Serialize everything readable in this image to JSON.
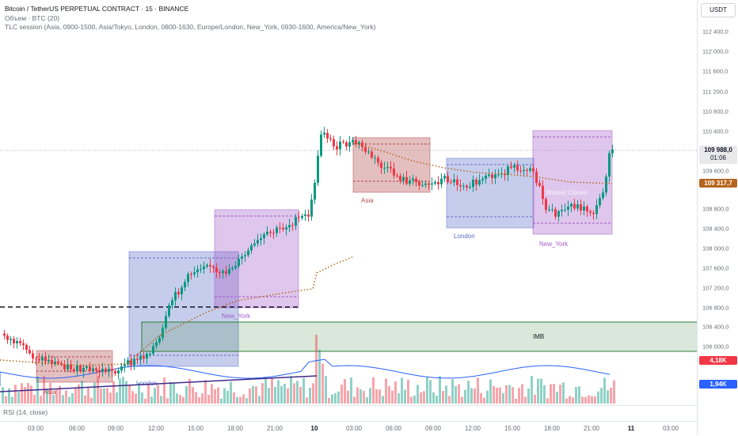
{
  "legend": {
    "title": "Bitcoin / TetherUS PERPETUAL CONTRACT · 15 · BINANCE",
    "volume": "Объем · BTC (20)",
    "tlc": "TLC session (Asia, 0900-1500, Asia/Tokyo, London, 0800-1630, Europe/London, New_York, 0930-1600, America/New_York)"
  },
  "currency": "USDT",
  "price_axis": [
    "112 400,0",
    "112 000,0",
    "111 600,0",
    "111 200,0",
    "110 800,0",
    "110 400,0",
    "109 600,0",
    "108 800,0",
    "108 400,0",
    "108 000,0",
    "107 600,0",
    "107 200,0",
    "106 800,0",
    "106 400,0",
    "106 000,0"
  ],
  "last_price": {
    "price": "109 988,0",
    "countdown": "01:06"
  },
  "vwap_price": "109 317,7",
  "volume_labels": {
    "current": "4,18K",
    "ma": "1,94K"
  },
  "time_axis": [
    {
      "label": "03:00",
      "bold": false
    },
    {
      "label": "06:00",
      "bold": false
    },
    {
      "label": "09:00",
      "bold": false
    },
    {
      "label": "12:00",
      "bold": false
    },
    {
      "label": "15:00",
      "bold": false
    },
    {
      "label": "18:00",
      "bold": false
    },
    {
      "label": "21:00",
      "bold": false
    },
    {
      "label": "10",
      "bold": true
    },
    {
      "label": "03:00",
      "bold": false
    },
    {
      "label": "06:00",
      "bold": false
    },
    {
      "label": "09:00",
      "bold": false
    },
    {
      "label": "12:00",
      "bold": false
    },
    {
      "label": "15:00",
      "bold": false
    },
    {
      "label": "18:00",
      "bold": false
    },
    {
      "label": "21:00",
      "bold": false
    },
    {
      "label": "11",
      "bold": true
    },
    {
      "label": "03:00",
      "bold": false
    }
  ],
  "rsi_label": "RSI (14, close)",
  "sessions": {
    "asia": "Asia",
    "london": "London",
    "new_york": "New_York"
  },
  "imb_label": "IMB",
  "market_open_label": "Market Closed",
  "colors": {
    "up": "#089981",
    "down": "#f23645",
    "asia": "#b2484b",
    "london": "#5d6fc9",
    "new_york": "#a45bc9",
    "imb": "#2e7d32",
    "vwap": "#b5651d",
    "ma": "#2962ff"
  }
}
